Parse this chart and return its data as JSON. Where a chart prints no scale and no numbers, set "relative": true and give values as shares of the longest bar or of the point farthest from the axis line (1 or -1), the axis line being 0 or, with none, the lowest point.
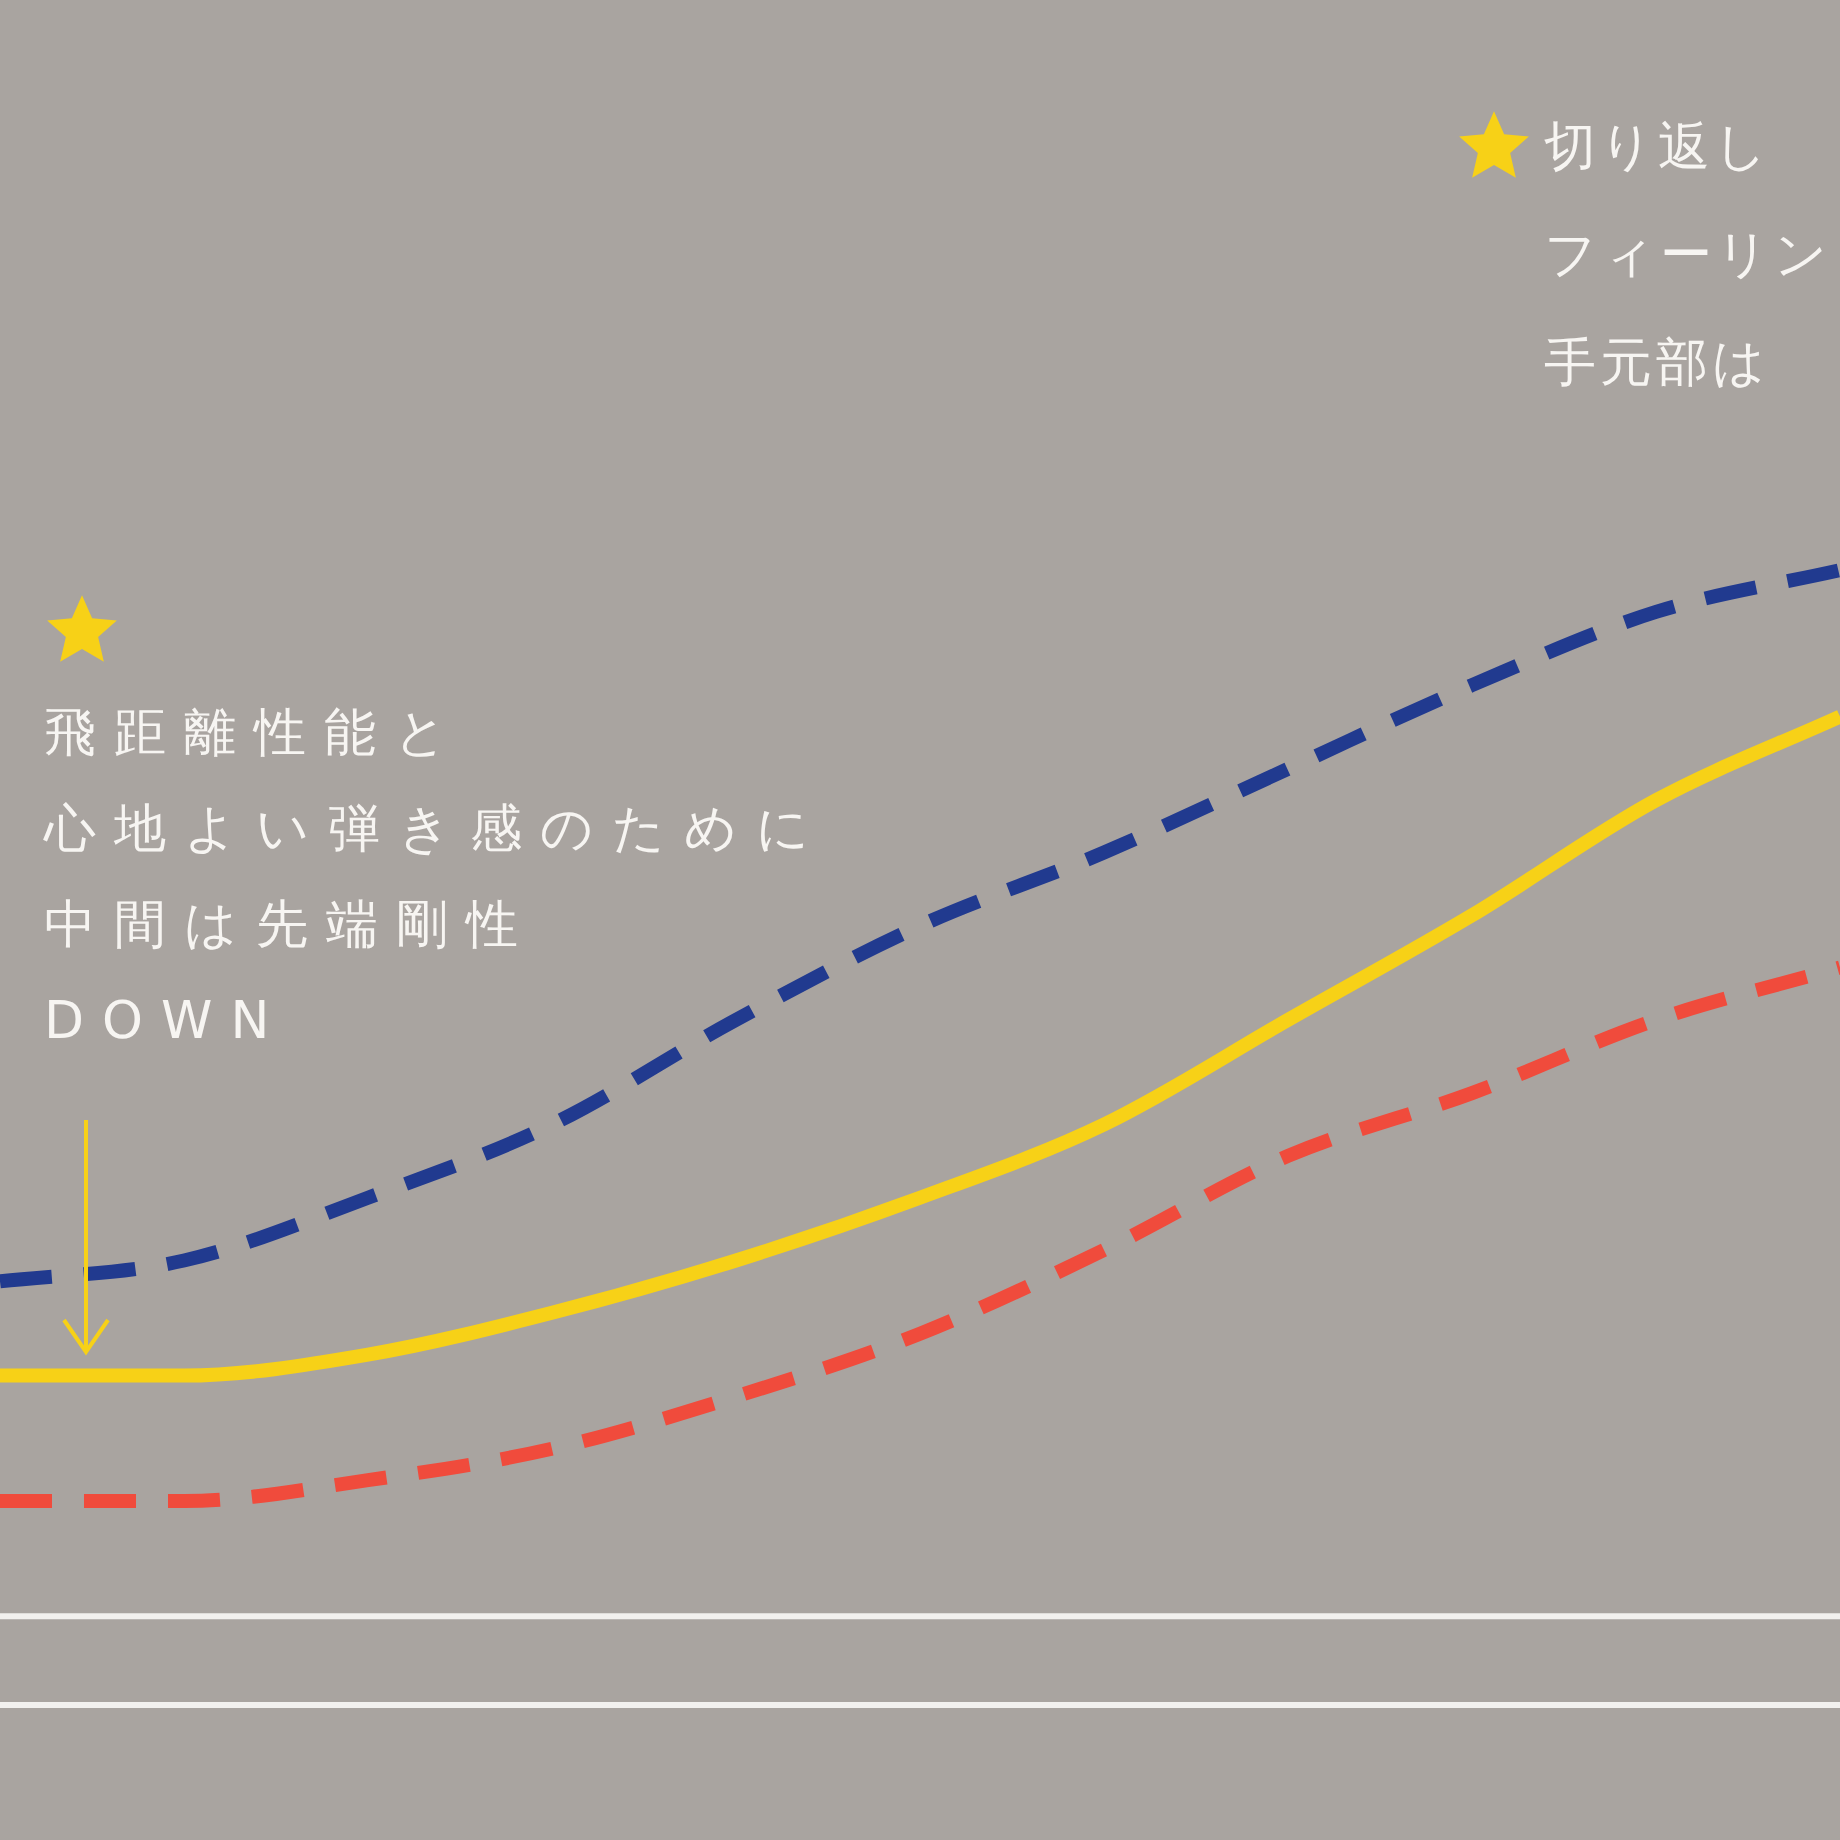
{
  "chart_data": {
    "type": "line",
    "relative": true,
    "legend": false,
    "categories": [
      null,
      null,
      null,
      null,
      null,
      null,
      null,
      null,
      null,
      null,
      null
    ],
    "series": [
      {
        "color": "#213a8f",
        "line_style": "dashed",
        "values": [
          0.32,
          0.34,
          0.4,
          0.47,
          0.57,
          0.66,
          0.73,
          0.81,
          0.89,
          0.96,
          1
        ]
      },
      {
        "color": "#f7d117",
        "line_style": "solid",
        "values": [
          0.23,
          0.23,
          0.25,
          0.29,
          0.34,
          0.4,
          0.47,
          0.57,
          0.67,
          0.78,
          0.86
        ]
      },
      {
        "color": "#f04b3c",
        "line_style": "dashed",
        "values": [
          0.11,
          0.11,
          0.13,
          0.16,
          0.21,
          0.27,
          0.35,
          0.44,
          0.5,
          0.57,
          0.62
        ]
      }
    ],
    "annotations": [
      "飛距離性能と",
      "心地よい弾き感のために",
      "中間は先端剛性",
      "DOWN",
      "切り返し",
      "フィーリン",
      "手元部は"
    ]
  }
}
